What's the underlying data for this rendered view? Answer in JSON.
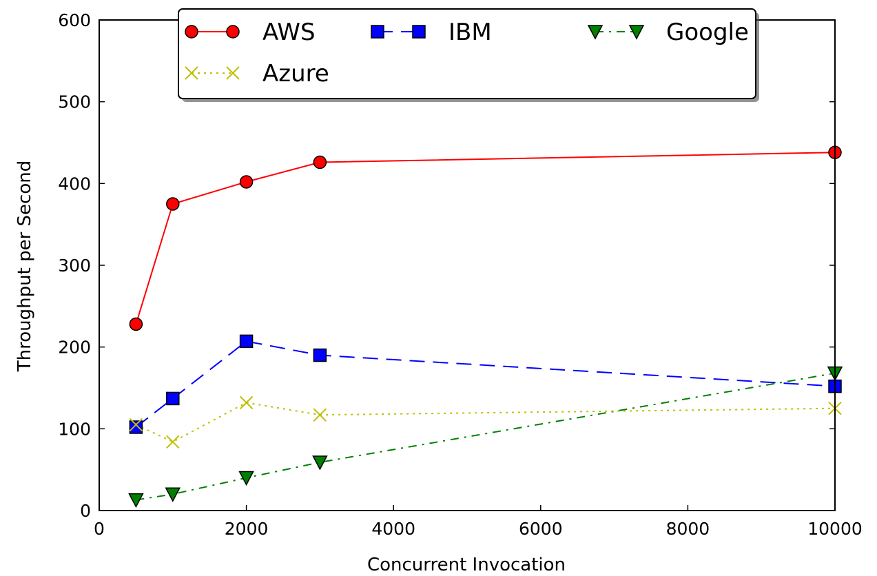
{
  "chart_data": {
    "type": "line",
    "title": "",
    "xlabel": "Concurrent Invocation",
    "ylabel": "Throughput per Second",
    "xlim": [
      0,
      10000
    ],
    "ylim": [
      0,
      600
    ],
    "xticks": [
      0,
      2000,
      4000,
      6000,
      8000,
      10000
    ],
    "yticks": [
      0,
      100,
      200,
      300,
      400,
      500,
      600
    ],
    "x": [
      500,
      1000,
      2000,
      3000,
      10000
    ],
    "grid": false,
    "legend": {
      "placement": "top",
      "columns": 3
    },
    "series": [
      {
        "name": "AWS",
        "values": [
          228,
          375,
          402,
          426,
          438
        ],
        "color": "#ff0000",
        "marker": "circle",
        "marker_fill": "#ff0000",
        "linestyle": "solid"
      },
      {
        "name": "IBM",
        "values": [
          102,
          137,
          207,
          190,
          152
        ],
        "color": "#0000ff",
        "marker": "square",
        "marker_fill": "#0000ff",
        "linestyle": "dashed"
      },
      {
        "name": "Google",
        "values": [
          13,
          20,
          40,
          59,
          168
        ],
        "color": "#008000",
        "marker": "triangle-down",
        "marker_fill": "#008000",
        "linestyle": "dashdot"
      },
      {
        "name": "Azure",
        "values": [
          105,
          84,
          132,
          117,
          125
        ],
        "color": "#bfbf00",
        "marker": "x",
        "marker_fill": "#bfbf00",
        "linestyle": "dotted"
      }
    ]
  }
}
